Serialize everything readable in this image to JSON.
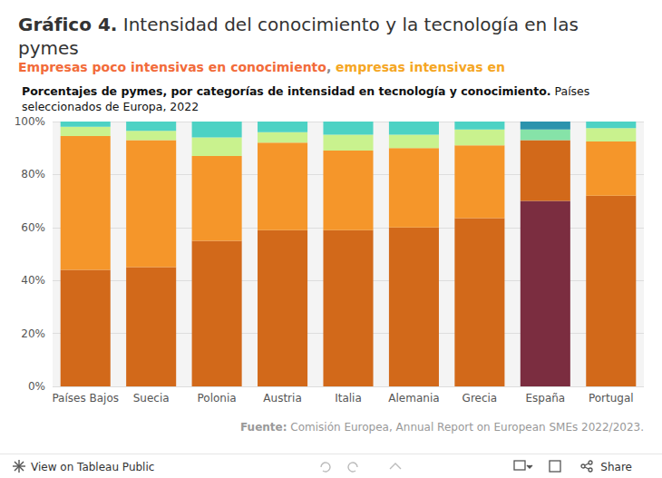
{
  "header": {
    "title_label": "Gráfico 4.",
    "title": "Intensidad del conocimiento y la tecnología en las pymes",
    "subtitle": "Empresas poco intensivas en conocimiento, empresas intensivas en"
  },
  "chart_data": {
    "type": "bar",
    "stacked": true,
    "grid": true,
    "title": "Porcentajes de pymes, por categorías de intensidad en tecnología y conocimiento.",
    "subtitle": "Países seleccionados de Europa, 2022",
    "categories": [
      "Países Bajos",
      "Suecia",
      "Polonia",
      "Austria",
      "Italia",
      "Alemania",
      "Grecia",
      "España",
      "Portugal"
    ],
    "series": [
      {
        "colors": [
          "#d2691a",
          "#d2691a",
          "#d2691a",
          "#d2691a",
          "#d2691a",
          "#d2691a",
          "#d2691a",
          "#7b2d40",
          "#d2691a"
        ],
        "values": [
          44,
          45,
          55,
          59,
          59,
          60,
          63.5,
          70,
          72
        ]
      },
      {
        "colors": [
          "#f5962a",
          "#f5962a",
          "#f5962a",
          "#f5962a",
          "#f5962a",
          "#f5962a",
          "#f5962a",
          "#d2691a",
          "#f5962a"
        ],
        "values": [
          50.5,
          48,
          32,
          33,
          30,
          30,
          27.5,
          23,
          20.5
        ]
      },
      {
        "colors": [
          "#c9f28e",
          "#c9f28e",
          "#c9f28e",
          "#c9f28e",
          "#c9f28e",
          "#c9f28e",
          "#c9f28e",
          "#86e3a8",
          "#c9f28e"
        ],
        "values": [
          3.5,
          3.5,
          7,
          4,
          6,
          5,
          6,
          4,
          5
        ]
      },
      {
        "colors": [
          "#4dd2c4",
          "#4dd2c4",
          "#4dd2c4",
          "#4dd2c4",
          "#4dd2c4",
          "#4dd2c4",
          "#4dd2c4",
          "#2b93ad",
          "#4dd2c4"
        ],
        "values": [
          2,
          3.5,
          6,
          4,
          5,
          5,
          3,
          3,
          2.5
        ]
      }
    ],
    "ylim": [
      0,
      100
    ],
    "yticks": [
      {
        "value": 0,
        "label": "0%"
      },
      {
        "value": 20,
        "label": "20%"
      },
      {
        "value": 40,
        "label": "40%"
      },
      {
        "value": 60,
        "label": "60%"
      },
      {
        "value": 80,
        "label": "80%"
      },
      {
        "value": 100,
        "label": "100%"
      }
    ],
    "source": {
      "label": "Fuente:",
      "text": "Comisión Europea, Annual Report on European SMEs 2022/2023."
    }
  },
  "footer": {
    "view": "View on Tableau Public",
    "share": "Share"
  }
}
